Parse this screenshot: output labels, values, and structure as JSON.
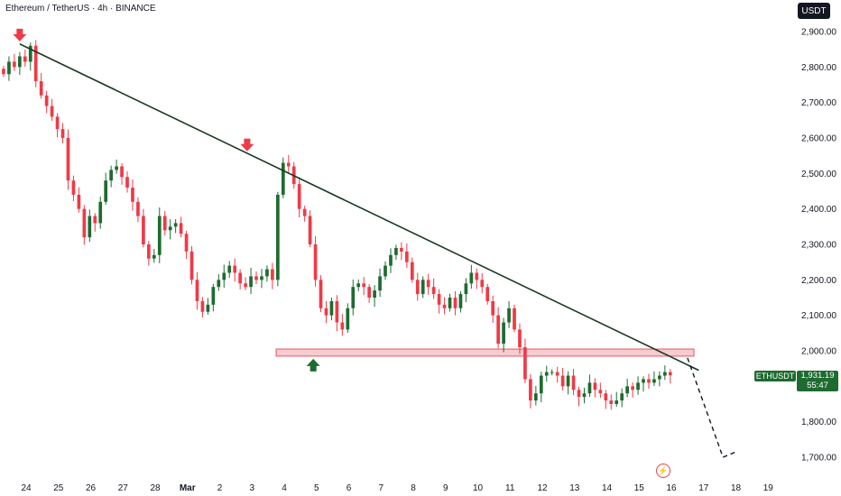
{
  "header": {
    "title": "Ethereum / TetherUS · 4h · BINANCE",
    "currency": "USDT"
  },
  "price_tag": {
    "symbol": "ETHUSDT",
    "price": "1,931.19",
    "countdown": "55:47"
  },
  "colors": {
    "up": "#1e6b30",
    "down": "#ef3a47",
    "trendline": "#1a3a22",
    "zone_fill": "#f7c6cb",
    "zone_border": "#e5454d",
    "arrow_down": "#ef3a47",
    "arrow_up": "#1e6b30"
  },
  "icons": {
    "flash": "flash-icon"
  },
  "chart_data": {
    "type": "candlestick",
    "y_ticks": [
      {
        "value": 2900,
        "label": "2,900.00"
      },
      {
        "value": 2800,
        "label": "2,800.00"
      },
      {
        "value": 2700,
        "label": "2,700.00"
      },
      {
        "value": 2600,
        "label": "2,600.00"
      },
      {
        "value": 2500,
        "label": "2,500.00"
      },
      {
        "value": 2400,
        "label": "2,400.00"
      },
      {
        "value": 2300,
        "label": "2,300.00"
      },
      {
        "value": 2200,
        "label": "2,200.00"
      },
      {
        "value": 2100,
        "label": "2,100.00"
      },
      {
        "value": 2000,
        "label": "2,000.00"
      },
      {
        "value": 1800,
        "label": "1,800.00"
      },
      {
        "value": 1700,
        "label": "1,700.00"
      }
    ],
    "x_ticks": [
      {
        "pos": 0,
        "label": "24"
      },
      {
        "pos": 1,
        "label": "25"
      },
      {
        "pos": 2,
        "label": "26"
      },
      {
        "pos": 3,
        "label": "27"
      },
      {
        "pos": 4,
        "label": "28"
      },
      {
        "pos": 5,
        "label": "Mar"
      },
      {
        "pos": 6,
        "label": "2"
      },
      {
        "pos": 7,
        "label": "3"
      },
      {
        "pos": 8,
        "label": "4"
      },
      {
        "pos": 9,
        "label": "5"
      },
      {
        "pos": 10,
        "label": "6"
      },
      {
        "pos": 11,
        "label": "7"
      },
      {
        "pos": 12,
        "label": "8"
      },
      {
        "pos": 13,
        "label": "9"
      },
      {
        "pos": 14,
        "label": "10"
      },
      {
        "pos": 15,
        "label": "11"
      },
      {
        "pos": 16,
        "label": "12"
      },
      {
        "pos": 17,
        "label": "13"
      },
      {
        "pos": 18,
        "label": "14"
      },
      {
        "pos": 19,
        "label": "15"
      },
      {
        "pos": 20,
        "label": "16"
      },
      {
        "pos": 21,
        "label": "17"
      },
      {
        "pos": 22,
        "label": "18"
      },
      {
        "pos": 23,
        "label": "19"
      }
    ],
    "ylim": [
      1675,
      2945
    ],
    "xlim": [
      -0.8,
      24
    ],
    "candles_per_day": 6,
    "first_candle_pos": -0.7,
    "closes": [
      2780,
      2815,
      2800,
      2830,
      2815,
      2860,
      2760,
      2720,
      2690,
      2660,
      2625,
      2600,
      2480,
      2440,
      2400,
      2320,
      2380,
      2360,
      2420,
      2480,
      2510,
      2520,
      2490,
      2460,
      2420,
      2380,
      2300,
      2260,
      2270,
      2380,
      2340,
      2350,
      2360,
      2330,
      2280,
      2200,
      2140,
      2110,
      2130,
      2180,
      2200,
      2220,
      2240,
      2220,
      2190,
      2180,
      2210,
      2200,
      2210,
      2230,
      2200,
      2440,
      2530,
      2520,
      2470,
      2400,
      2380,
      2300,
      2200,
      2120,
      2100,
      2140,
      2080,
      2060,
      2120,
      2180,
      2190,
      2180,
      2150,
      2170,
      2210,
      2240,
      2270,
      2290,
      2280,
      2250,
      2200,
      2160,
      2200,
      2180,
      2160,
      2130,
      2120,
      2150,
      2120,
      2160,
      2190,
      2220,
      2200,
      2180,
      2140,
      2100,
      2020,
      2080,
      2120,
      2060,
      2010,
      1920,
      1860,
      1880,
      1930,
      1940,
      1940,
      1930,
      1900,
      1930,
      1890,
      1870,
      1880,
      1910,
      1890,
      1880,
      1860,
      1850,
      1860,
      1880,
      1900,
      1890,
      1910,
      1920,
      1910,
      1920,
      1930,
      1940,
      1931
    ],
    "trendline": [
      {
        "pos": -0.2,
        "value": 2865
      },
      {
        "pos": 20.85,
        "value": 1945
      }
    ],
    "support_zone": {
      "pos_start": 7.75,
      "pos_end": 20.7,
      "low": 1985,
      "high": 2005
    },
    "projection": [
      {
        "pos": 20.5,
        "value": 1980
      },
      {
        "pos": 21.6,
        "value": 1700
      },
      {
        "pos": 22.0,
        "value": 1715
      }
    ],
    "markers": [
      {
        "type": "arrow-down",
        "pos": -0.2,
        "value": 2875
      },
      {
        "type": "arrow-down",
        "pos": 6.85,
        "value": 2565
      },
      {
        "type": "arrow-up",
        "pos": 8.9,
        "value": 1975
      }
    ]
  }
}
